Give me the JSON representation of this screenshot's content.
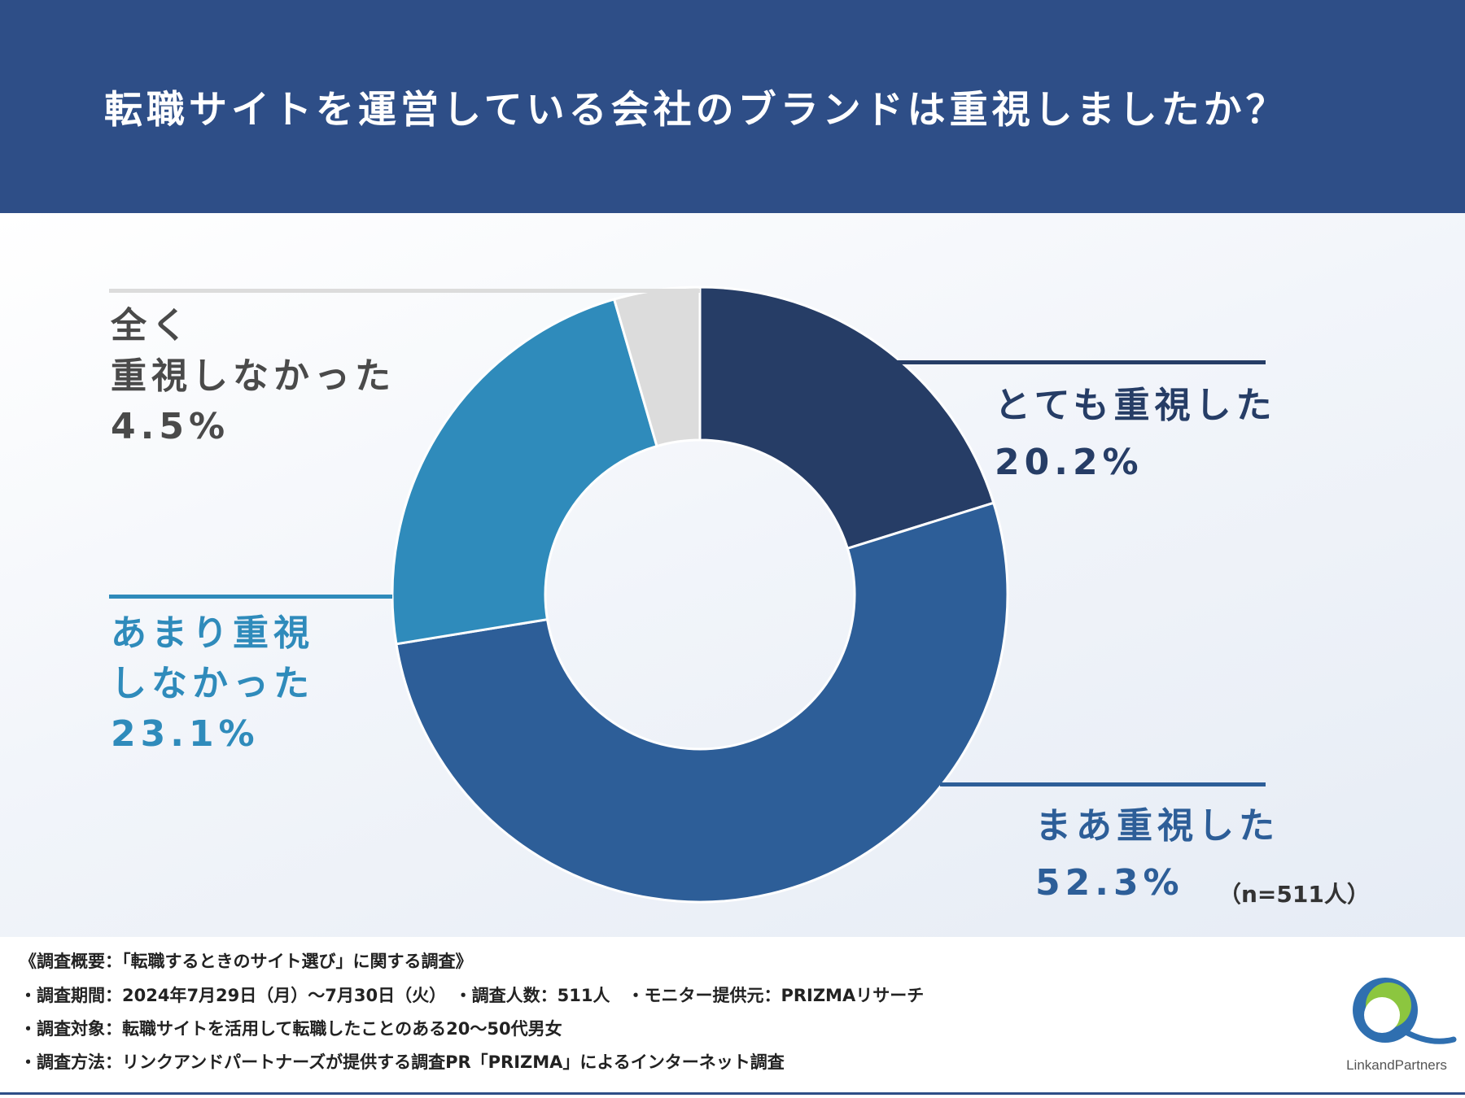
{
  "header": {
    "title": "転職サイトを運営している会社のブランドは重視しましたか？"
  },
  "chart_data": {
    "type": "pie",
    "donut": true,
    "title": "転職サイトを運営している会社のブランドは重視しましたか？",
    "slices": [
      {
        "label_line1": "とても重視した",
        "label_line2": "",
        "value": 20.2,
        "pct_text": "20.2%",
        "color": "#263d66",
        "label_color": "#263d66"
      },
      {
        "label_line1": "まあ重視した",
        "label_line2": "",
        "value": 52.3,
        "pct_text": "52.3%",
        "color": "#2d5e98",
        "label_color": "#2d5e98"
      },
      {
        "label_line1": "あまり重視",
        "label_line2": "しなかった",
        "value": 23.1,
        "pct_text": "23.1%",
        "color": "#2f8bbb",
        "label_color": "#2f8bbb"
      },
      {
        "label_line1": "全く",
        "label_line2": "重視しなかった",
        "value": 4.5,
        "pct_text": "4.5%",
        "color": "#dcdcdc",
        "label_color": "#4a4a4a"
      }
    ],
    "note": "（n=511人）"
  },
  "footer": {
    "line1": "《調査概要：「転職するときのサイト選び」に関する調査》",
    "line2": "・調査期間：2024年7月29日（月）～7月30日（火）　・調査人数：511人　・モニター提供元：PRIZMAリサーチ",
    "line3": "・調査対象：転職サイトを活用して転職したことのある20～50代男女",
    "line4": "・調査方法：リンクアンドパートナーズが提供する調査PR「PRIZMA」によるインターネット調査"
  },
  "logo": {
    "text": "LinkandPartners"
  }
}
